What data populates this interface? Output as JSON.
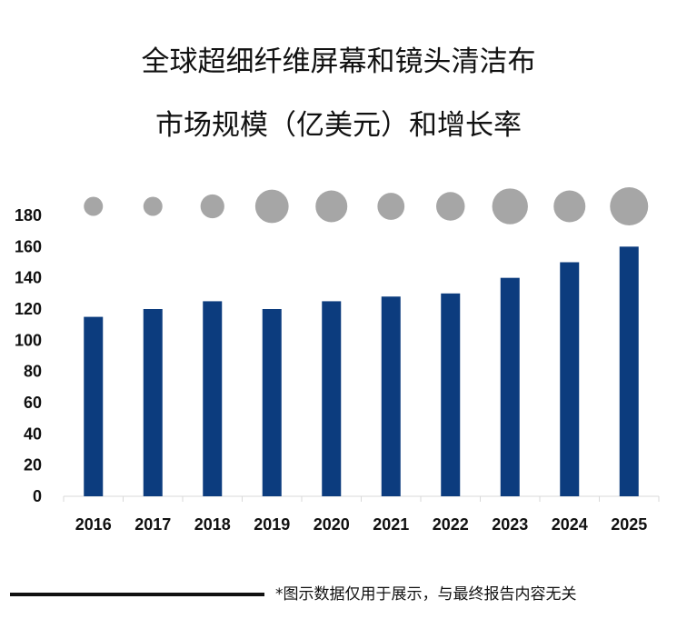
{
  "chart_data": {
    "type": "bar",
    "title_line1": "全球超细纤维屏幕和镜头清洁布",
    "title_line2": "市场规模（亿美元）和增长率",
    "categories": [
      "2016",
      "2017",
      "2018",
      "2019",
      "2020",
      "2021",
      "2022",
      "2023",
      "2024",
      "2025"
    ],
    "series": [
      {
        "name": "市场规模（亿美元）",
        "values": [
          115,
          120,
          125,
          120,
          125,
          128,
          130,
          140,
          150,
          160
        ]
      },
      {
        "name": "增长率",
        "values": [
          2.0,
          2.0,
          2.6,
          3.8,
          3.6,
          3.0,
          3.2,
          4.1,
          3.6,
          4.4
        ],
        "encoding": "relative circle size"
      }
    ],
    "yticks": [
      0,
      20,
      40,
      60,
      80,
      100,
      120,
      140,
      160,
      180
    ],
    "ylim": [
      0,
      180
    ],
    "bar_color": "#0c3c7e",
    "circle_color": "#a6a6a6"
  },
  "footer": {
    "note": "*图示数据仅用于展示，与最终报告内容无关"
  }
}
